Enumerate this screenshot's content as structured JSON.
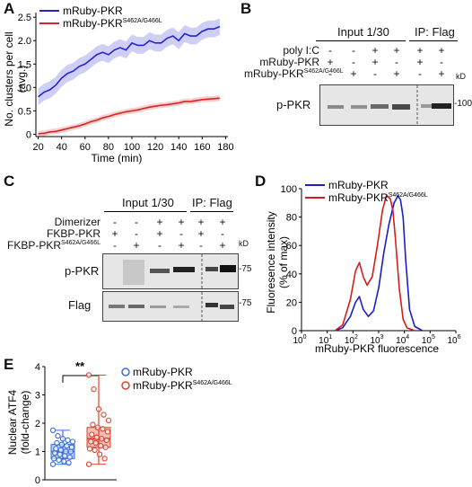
{
  "panels": {
    "a": "A",
    "b": "B",
    "c": "C",
    "d": "D",
    "e": "E"
  },
  "panel_a": {
    "ylabel_1": "No. clusters per cell",
    "ylabel_2": "(avg.)",
    "xlabel": "Time (min)",
    "legend": [
      {
        "name": "mRuby-PKR",
        "color": "#2323d6"
      },
      {
        "name": "mRuby-PKR",
        "sup": "S462A/G466L",
        "color": "#d62323"
      }
    ],
    "xticks": [
      "20",
      "40",
      "60",
      "80",
      "100",
      "120",
      "140",
      "160",
      "180"
    ],
    "yticks": [
      "0",
      "0.5",
      "1.0",
      "1.5",
      "2.0",
      "2.5"
    ]
  },
  "panel_b": {
    "header_input": "Input 1/30",
    "header_ip": "IP: Flag",
    "rows": [
      {
        "label": "poly I:C",
        "sup": "",
        "marks": [
          "-",
          "-",
          "+",
          "+",
          "+",
          "+"
        ]
      },
      {
        "label": "mRuby-PKR",
        "sup": "",
        "marks": [
          "+",
          "-",
          "+",
          "-",
          "+",
          "-"
        ]
      },
      {
        "label": "mRuby-PKR",
        "sup": "S462A/G466L",
        "marks": [
          "-",
          "+",
          "-",
          "+",
          "-",
          "+"
        ]
      }
    ],
    "blot_label": "p-PKR",
    "kd_label": "kD",
    "marker": "100"
  },
  "panel_c": {
    "header_input": "Input 1/30",
    "header_ip": "IP: Flag",
    "rows": [
      {
        "label": "Dimerizer",
        "sup": "",
        "marks": [
          "-",
          "-",
          "+",
          "+",
          "+",
          "+"
        ]
      },
      {
        "label": "FKBP-PKR",
        "sup": "",
        "marks": [
          "+",
          "-",
          "+",
          "-",
          "+",
          "-"
        ]
      },
      {
        "label": "FKBP-PKR",
        "sup": "S462A/G466L",
        "marks": [
          "-",
          "+",
          "-",
          "+",
          "-",
          "+"
        ]
      }
    ],
    "blot1_label": "p-PKR",
    "blot2_label": "Flag",
    "kd_label": "kD",
    "marker1": "75",
    "marker2": "75"
  },
  "panel_d": {
    "ylabel_1": "Fluoresence intensity",
    "ylabel_2": "(% of max)",
    "xlabel": "mRuby-PKR fluorescence",
    "legend": [
      {
        "name": "mRuby-PKR",
        "color": "#1c1cc8"
      },
      {
        "name": "mRuby-PKR",
        "sup": "S462A/G466L",
        "color": "#d61c1c"
      }
    ],
    "yticks": [
      "0",
      "20",
      "40",
      "60",
      "80",
      "100"
    ],
    "xticks": [
      "0",
      "1",
      "2",
      "3",
      "4",
      "5",
      "6"
    ],
    "xtick_base": "10"
  },
  "panel_e": {
    "ylabel_1": "Nuclear ATF4",
    "ylabel_2": "(fold-change)",
    "significance": "**",
    "yticks": [
      "0",
      "1",
      "2",
      "3",
      "4"
    ],
    "legend": [
      {
        "name": "mRuby-PKR",
        "color": "#3a6fd8"
      },
      {
        "name": "mRuby-PKR",
        "sup": "S462A/G466L",
        "color": "#e0412c"
      }
    ]
  },
  "chart_data": [
    {
      "type": "line",
      "xlabel": "Time (min)",
      "ylabel": "No. clusters per cell (avg.)",
      "xlim": [
        18,
        182
      ],
      "ylim": [
        -0.05,
        2.6
      ],
      "series": [
        {
          "name": "mRuby-PKR",
          "color": "#2323d6",
          "x": [
            20,
            25,
            30,
            35,
            40,
            45,
            50,
            55,
            60,
            65,
            70,
            75,
            80,
            85,
            90,
            95,
            100,
            105,
            110,
            115,
            120,
            125,
            130,
            135,
            140,
            145,
            150,
            155,
            160,
            165,
            170,
            175
          ],
          "y": [
            0.8,
            0.9,
            0.95,
            1.05,
            1.2,
            1.3,
            1.35,
            1.45,
            1.5,
            1.6,
            1.7,
            1.75,
            1.7,
            1.8,
            1.85,
            1.8,
            1.95,
            1.9,
            1.9,
            2.0,
            1.95,
            1.95,
            2.05,
            2.1,
            2.0,
            2.15,
            2.1,
            2.1,
            2.2,
            2.25,
            2.25,
            2.3
          ],
          "err": 0.18
        },
        {
          "name": "mRuby-PKR S462A/G466L",
          "color": "#d62323",
          "x": [
            20,
            25,
            30,
            35,
            40,
            45,
            50,
            55,
            60,
            65,
            70,
            75,
            80,
            85,
            90,
            95,
            100,
            105,
            110,
            115,
            120,
            125,
            130,
            135,
            140,
            145,
            150,
            155,
            160,
            165,
            170,
            175
          ],
          "y": [
            0.01,
            0.02,
            0.05,
            0.06,
            0.09,
            0.12,
            0.15,
            0.18,
            0.22,
            0.27,
            0.3,
            0.35,
            0.38,
            0.42,
            0.45,
            0.48,
            0.5,
            0.52,
            0.55,
            0.58,
            0.6,
            0.62,
            0.63,
            0.65,
            0.67,
            0.7,
            0.7,
            0.72,
            0.74,
            0.75,
            0.76,
            0.77
          ],
          "err": 0.06
        }
      ]
    },
    {
      "type": "line",
      "xlabel": "mRuby-PKR fluorescence",
      "ylabel": "Fluoresence intensity (% of max)",
      "xscale": "log",
      "xlim": [
        0,
        6
      ],
      "ylim": [
        0,
        100
      ],
      "series": [
        {
          "name": "mRuby-PKR",
          "color": "#1c1cc8",
          "x": [
            1.3,
            1.6,
            1.9,
            2.1,
            2.25,
            2.4,
            2.6,
            2.8,
            3.0,
            3.2,
            3.4,
            3.6,
            3.75,
            3.85,
            3.95,
            4.05,
            4.2,
            4.4,
            4.7
          ],
          "y": [
            0,
            2,
            10,
            20,
            24,
            15,
            10,
            14,
            30,
            55,
            75,
            90,
            95,
            92,
            80,
            50,
            15,
            3,
            0
          ]
        },
        {
          "name": "mRuby-PKR S462A/G466L",
          "color": "#d61c1c",
          "x": [
            1.3,
            1.6,
            1.9,
            2.1,
            2.25,
            2.4,
            2.55,
            2.75,
            2.95,
            3.15,
            3.3,
            3.45,
            3.55,
            3.65,
            3.8,
            3.95,
            4.1,
            4.4
          ],
          "y": [
            0,
            4,
            22,
            42,
            48,
            38,
            32,
            38,
            60,
            85,
            95,
            93,
            85,
            65,
            30,
            8,
            2,
            0
          ]
        }
      ]
    },
    {
      "type": "box",
      "ylabel": "Nuclear ATF4 (fold-change)",
      "ylim": [
        0,
        4
      ],
      "series": [
        {
          "name": "mRuby-PKR",
          "color": "#3a6fd8",
          "q1": 0.75,
          "median": 1.0,
          "q3": 1.25,
          "min": 0.55,
          "max": 1.75,
          "points": [
            0.55,
            0.6,
            0.65,
            0.7,
            0.75,
            0.8,
            0.85,
            0.9,
            0.95,
            1.0,
            1.0,
            1.05,
            1.1,
            1.15,
            1.2,
            1.25,
            1.3,
            1.35,
            1.4,
            1.45,
            1.55,
            1.75
          ]
        },
        {
          "name": "mRuby-PKR S462A/G466L",
          "color": "#e0412c",
          "q1": 1.15,
          "median": 1.45,
          "q3": 1.85,
          "min": 0.55,
          "max": 3.7,
          "points": [
            0.55,
            0.75,
            0.9,
            1.05,
            1.1,
            1.15,
            1.2,
            1.3,
            1.35,
            1.4,
            1.45,
            1.5,
            1.6,
            1.7,
            1.8,
            1.85,
            1.95,
            2.1,
            2.3,
            2.5,
            3.2,
            3.7
          ]
        }
      ]
    }
  ]
}
